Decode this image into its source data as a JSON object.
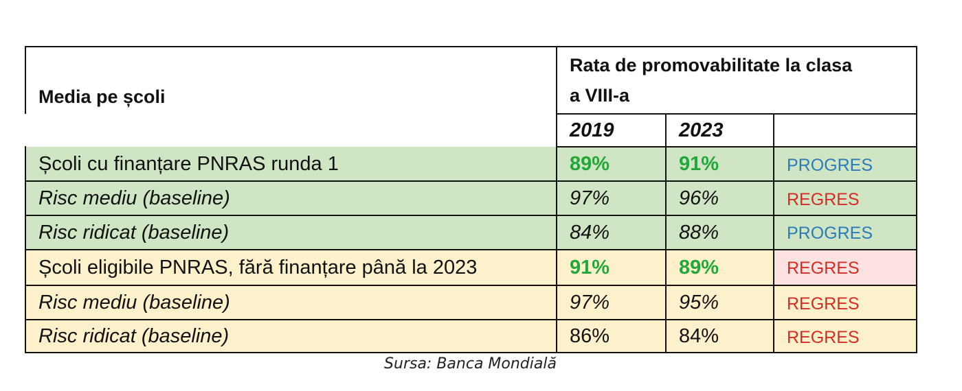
{
  "table": {
    "header": {
      "row_label": "Media pe școli",
      "group_label_line1": "Rata de promovabilitate la clasa",
      "group_label_line2": "a VIII-a",
      "years": [
        "2019",
        "2023"
      ]
    },
    "rows": [
      {
        "label": "Școli cu finanțare PNRAS runda 1",
        "v2019": "89%",
        "v2023": "91%",
        "status": "PROGRES"
      },
      {
        "label": "Risc mediu (baseline)",
        "v2019": "97%",
        "v2023": "96%",
        "status": "REGRES"
      },
      {
        "label": "Risc ridicat (baseline)",
        "v2019": "84%",
        "v2023": "88%",
        "status": "PROGRES"
      },
      {
        "label": "Școli eligibile PNRAS, fără finanțare până la 2023",
        "v2019": "91%",
        "v2023": "89%",
        "status": "REGRES"
      },
      {
        "label": "Risc mediu (baseline)",
        "v2019": "97%",
        "v2023": "95%",
        "status": "REGRES"
      },
      {
        "label": "Risc ridicat (baseline)",
        "v2019": "86%",
        "v2023": "84%",
        "status": "REGRES"
      }
    ]
  },
  "source": "Sursa: Banca Mondială",
  "colors": {
    "funded_group_bg": "#cfe5c3",
    "eligible_group_bg": "#fdf1cc",
    "regres_highlight_bg": "#fde2e1",
    "summary_value": "#22a83a",
    "progres": "#2b7bb9",
    "regres": "#d92b22"
  }
}
